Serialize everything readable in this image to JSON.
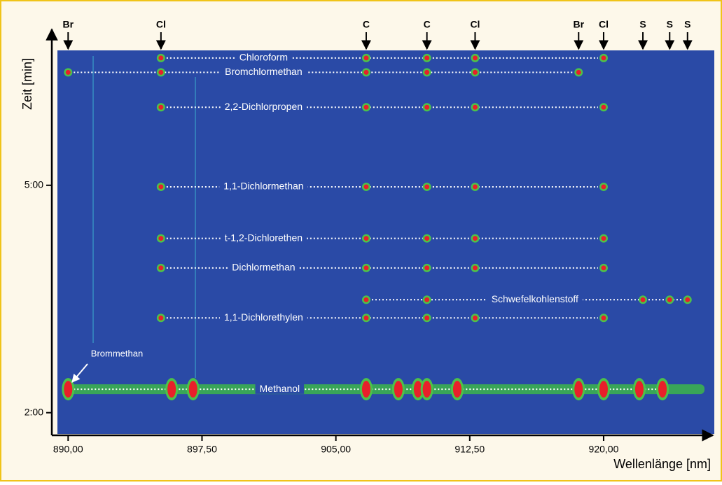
{
  "chart_data": {
    "type": "spectrogram",
    "xlabel": "Wellenlänge [nm]",
    "ylabel": "Zeit [min]",
    "xlim": [
      889.4,
      926.2
    ],
    "ylim": [
      1.72,
      6.78
    ],
    "xticks": [
      {
        "value": 890,
        "label": "890,00"
      },
      {
        "value": 897.5,
        "label": "897,50"
      },
      {
        "value": 905,
        "label": "905,00"
      },
      {
        "value": 912.5,
        "label": "912,50"
      },
      {
        "value": 920,
        "label": "920,00"
      }
    ],
    "yticks": [
      {
        "value": 2,
        "label": "2:00"
      },
      {
        "value": 5,
        "label": "5:00"
      }
    ],
    "color": "#2a4aa6",
    "elements": [
      {
        "label": "Br",
        "x": 890.0
      },
      {
        "label": "Cl",
        "x": 895.2
      },
      {
        "label": "C",
        "x": 906.7
      },
      {
        "label": "C",
        "x": 910.1
      },
      {
        "label": "Cl",
        "x": 912.8
      },
      {
        "label": "Br",
        "x": 918.6
      },
      {
        "label": "Cl",
        "x": 920.0
      },
      {
        "label": "S",
        "x": 922.2
      },
      {
        "label": "S",
        "x": 923.7
      },
      {
        "label": "S",
        "x": 924.7
      }
    ],
    "compounds": [
      {
        "label": "Chloroform",
        "y": 6.68,
        "peaks": [
          895.2,
          906.7,
          910.1,
          912.8,
          920.0
        ]
      },
      {
        "label": "Bromchlormethan",
        "y": 6.49,
        "peaks": [
          890.0,
          895.2,
          906.7,
          910.1,
          912.8,
          918.6
        ]
      },
      {
        "label": "2,2-Dichlorpropen",
        "y": 6.03,
        "peaks": [
          895.2,
          906.7,
          910.1,
          912.8,
          920.0
        ]
      },
      {
        "label": "1,1-Dichlormethan",
        "y": 4.98,
        "peaks": [
          895.2,
          906.7,
          910.1,
          912.8,
          920.0
        ]
      },
      {
        "label": "t-1,2-Dichlorethen",
        "y": 4.3,
        "peaks": [
          895.2,
          906.7,
          910.1,
          912.8,
          920.0
        ]
      },
      {
        "label": "Dichlormethan",
        "y": 3.91,
        "peaks": [
          895.2,
          906.7,
          910.1,
          912.8,
          920.0
        ]
      },
      {
        "label": "Schwefelkohlenstoff",
        "y": 3.49,
        "peaks": [
          906.7,
          910.1,
          922.2,
          923.7,
          924.7
        ]
      },
      {
        "label": "1,1-Dichlorethylen",
        "y": 3.25,
        "peaks": [
          895.2,
          906.7,
          910.1,
          912.8,
          920.0
        ]
      },
      {
        "label": "Methanol",
        "y": 2.31,
        "peaks": [
          890.0,
          895.8,
          897.0,
          906.7,
          908.5,
          909.6,
          910.1,
          911.8,
          918.6,
          920.0,
          922.0,
          923.3
        ]
      }
    ],
    "annotation": "Brommethan"
  }
}
